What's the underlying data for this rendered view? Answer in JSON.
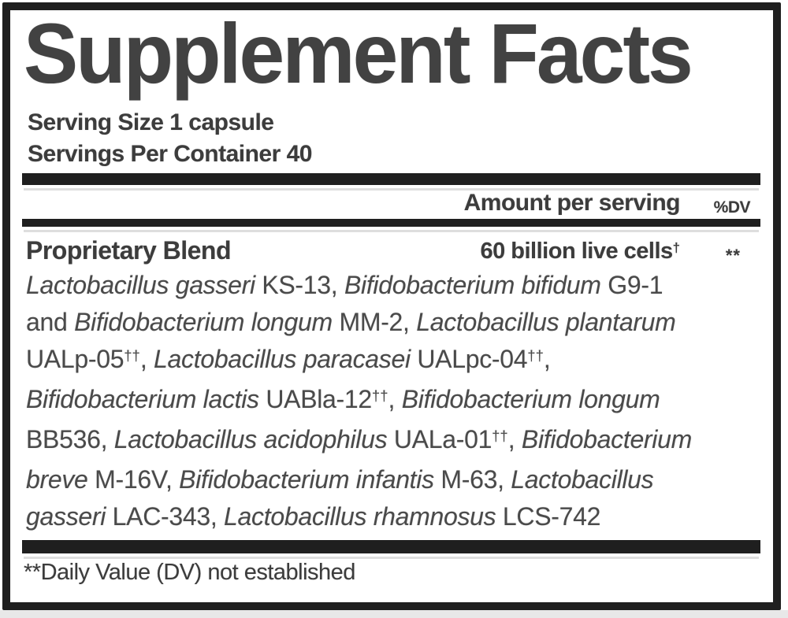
{
  "label": {
    "title": "Supplement Facts",
    "serving_size": "Serving Size 1 capsule",
    "servings_per_container": "Servings Per Container 40",
    "columns": {
      "amount": "Amount per serving",
      "dv": "%DV"
    },
    "row": {
      "name": "Proprietary Blend",
      "amount": "60 billion live cells",
      "amount_sup": "†",
      "dv": "**"
    },
    "blend_lines": [
      [
        {
          "t": "Lactobacillus gasseri",
          "i": true
        },
        {
          "t": " KS-13, "
        },
        {
          "t": "Bifidobacterium bifidum",
          "i": true
        },
        {
          "t": " G9-1"
        }
      ],
      [
        {
          "t": "and "
        },
        {
          "t": "Bifidobacterium longum",
          "i": true
        },
        {
          "t": " MM-2, "
        },
        {
          "t": "Lactobacillus plantarum",
          "i": true
        }
      ],
      [
        {
          "t": "UALp-05"
        },
        {
          "t": "††",
          "s": true
        },
        {
          "t": ", "
        },
        {
          "t": "Lactobacillus paracasei",
          "i": true
        },
        {
          "t": " UALpc-04"
        },
        {
          "t": "††",
          "s": true
        },
        {
          "t": ","
        }
      ],
      [
        {
          "t": "Bifidobacterium lactis",
          "i": true
        },
        {
          "t": " UABla-12"
        },
        {
          "t": "††",
          "s": true
        },
        {
          "t": ", "
        },
        {
          "t": "Bifidobacterium longum",
          "i": true
        }
      ],
      [
        {
          "t": "BB536, "
        },
        {
          "t": "Lactobacillus acidophilus",
          "i": true
        },
        {
          "t": " UALa-01"
        },
        {
          "t": "††",
          "s": true
        },
        {
          "t": ", "
        },
        {
          "t": "Bifidobacterium",
          "i": true
        }
      ],
      [
        {
          "t": "breve",
          "i": true
        },
        {
          "t": " M-16V, "
        },
        {
          "t": "Bifidobacterium infantis",
          "i": true
        },
        {
          "t": " M-63, "
        },
        {
          "t": "Lactobacillus",
          "i": true
        }
      ],
      [
        {
          "t": "gasseri",
          "i": true
        },
        {
          "t": " LAC-343, "
        },
        {
          "t": "Lactobacillus rhamnosus",
          "i": true
        },
        {
          "t": " LCS-742"
        }
      ]
    ],
    "footnote": "**Daily Value (DV) not established",
    "colors": {
      "ink": "#1f1f1f",
      "title": "#424242",
      "text": "#3c3c3c",
      "body_text": "#4a4a4a",
      "page_bg": "#ffffff",
      "edge_strip": "#e8e8e8"
    }
  }
}
